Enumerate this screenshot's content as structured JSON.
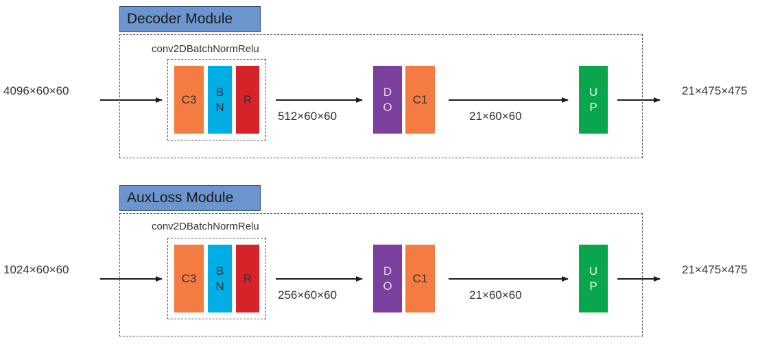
{
  "colors": {
    "title_bg": "#6b95cc",
    "c3": "#f47b42",
    "bn": "#00aee6",
    "r": "#d62229",
    "do": "#7b3f9e",
    "c1": "#f47b42",
    "up": "#0aa64e"
  },
  "modules": [
    {
      "title": "Decoder Module",
      "group_label": "conv2DBatchNormRelu",
      "input": "4096×60×60",
      "mid1": "512×60×60",
      "mid2": "21×60×60",
      "output": "21×475×475",
      "blocks": {
        "c3": "C3",
        "bn": [
          "B",
          "N"
        ],
        "r": "R",
        "do": [
          "D",
          "O"
        ],
        "c1": "C1",
        "up": [
          "U",
          "P"
        ]
      }
    },
    {
      "title": "AuxLoss Module",
      "group_label": "conv2DBatchNormRelu",
      "input": "1024×60×60",
      "mid1": "256×60×60",
      "mid2": "21×60×60",
      "output": "21×475×475",
      "blocks": {
        "c3": "C3",
        "bn": [
          "B",
          "N"
        ],
        "r": "R",
        "do": [
          "D",
          "O"
        ],
        "c1": "C1",
        "up": [
          "U",
          "P"
        ]
      }
    }
  ]
}
